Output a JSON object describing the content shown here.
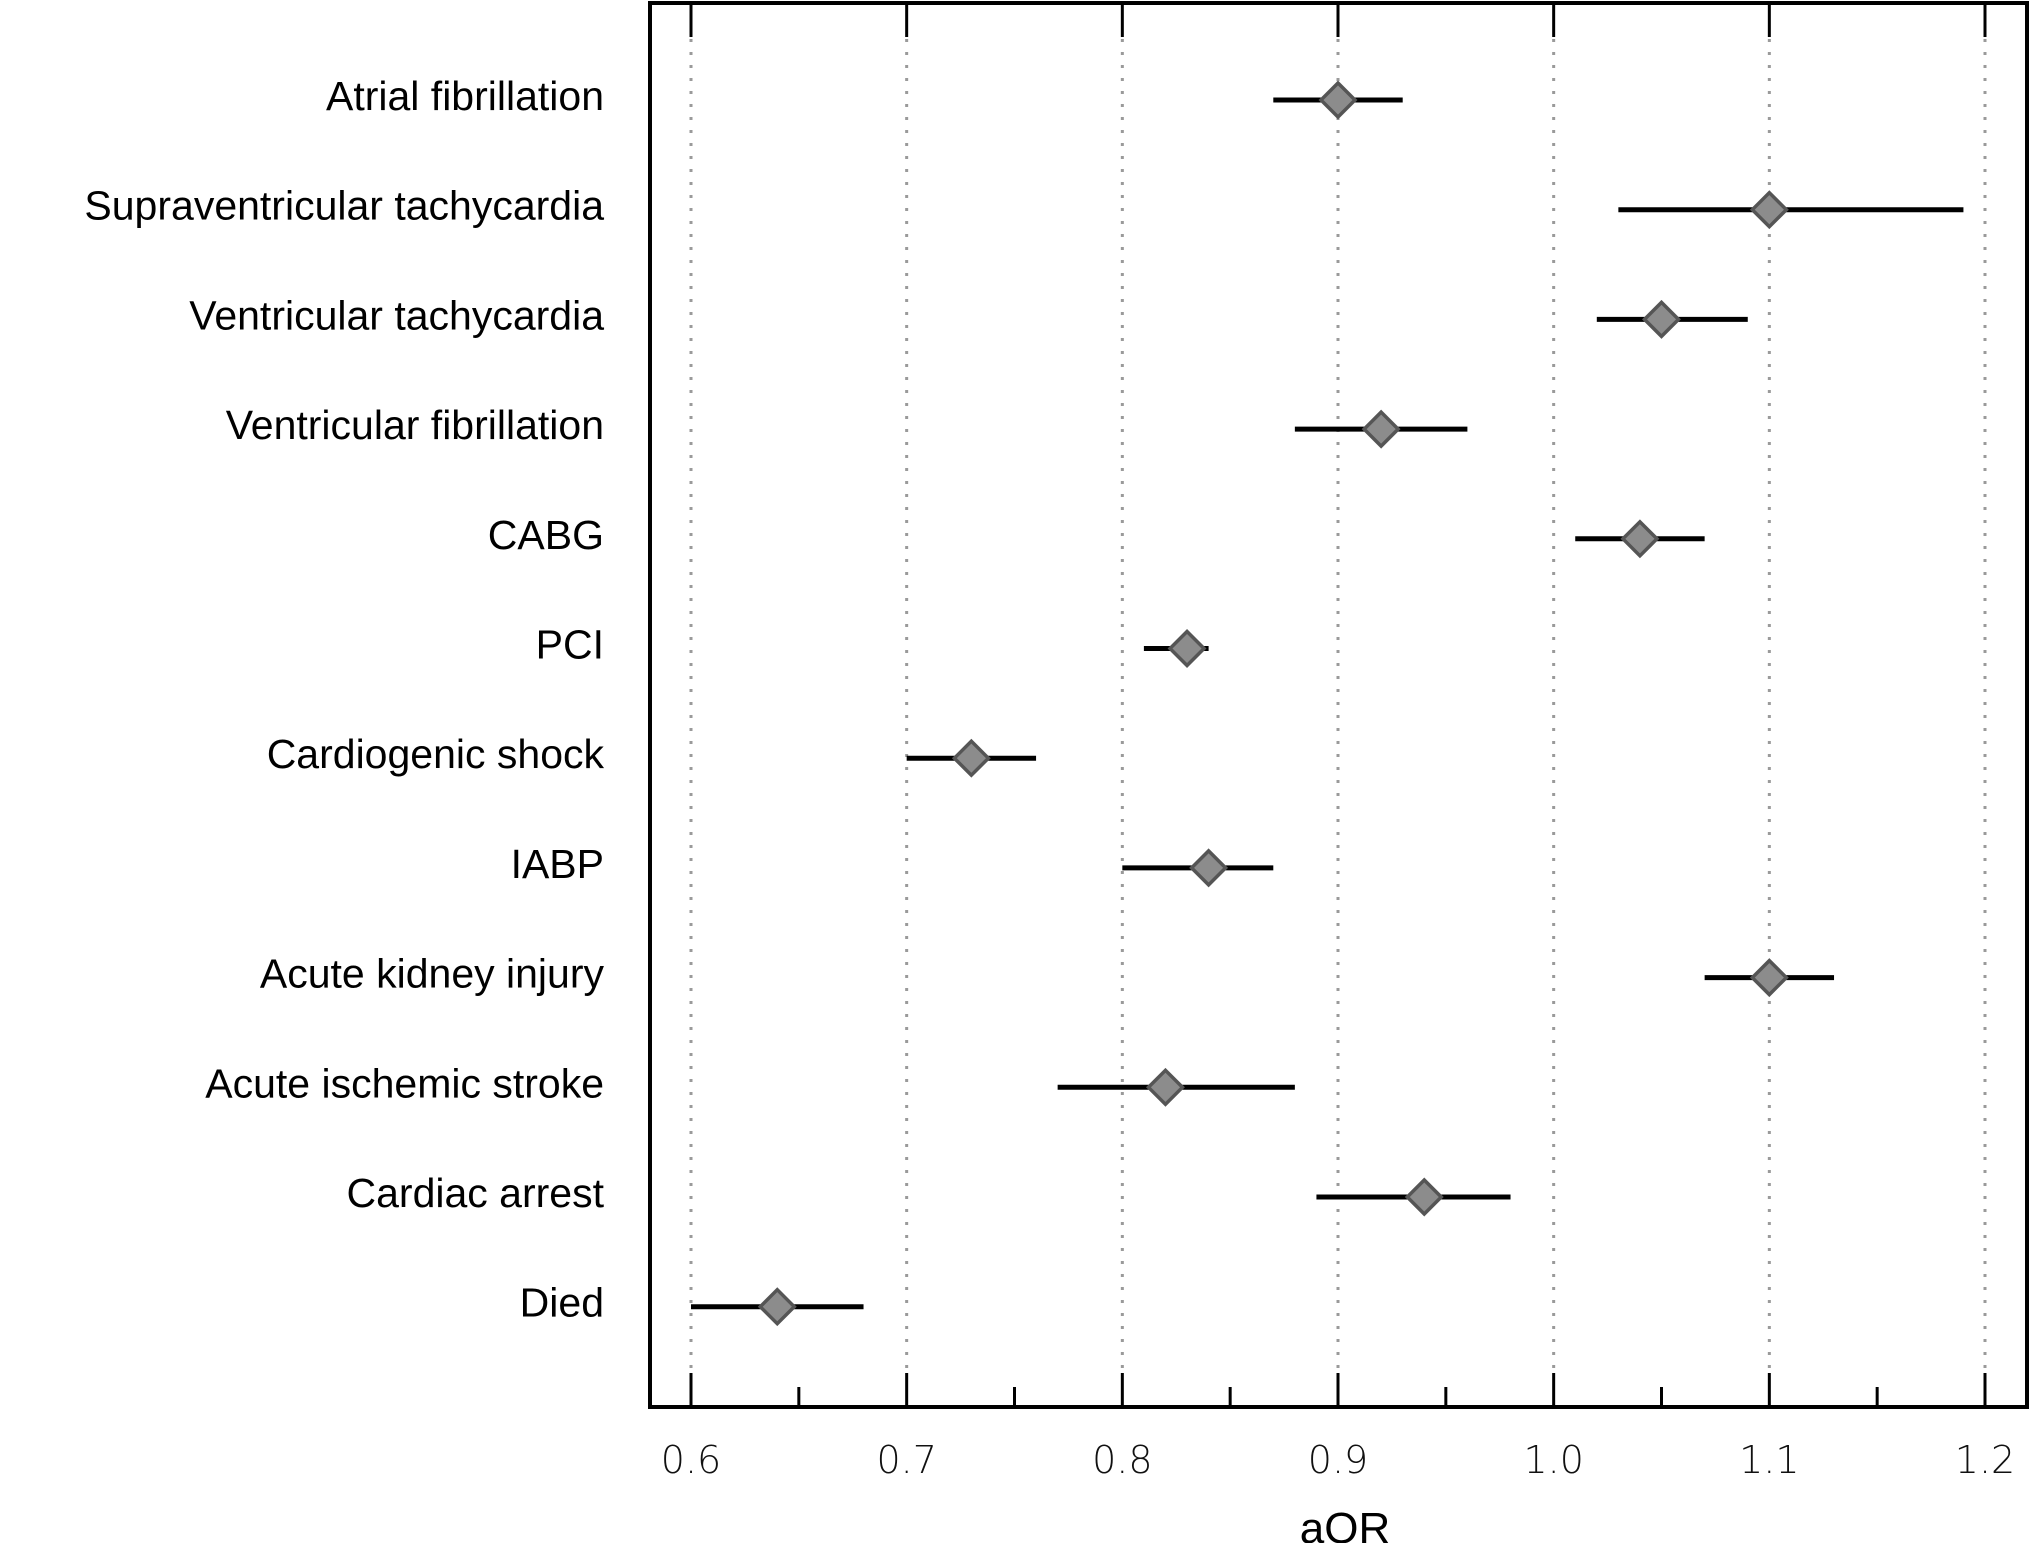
{
  "chart_data": {
    "type": "forest",
    "title": "",
    "xlabel": "aOR",
    "ylabel": "",
    "xlim": [
      0.58,
      1.225
    ],
    "x_ticks": [
      0.6,
      0.7,
      0.8,
      0.9,
      1.0,
      1.1,
      1.2
    ],
    "x_tick_labels": [
      "0.6",
      "0.7",
      "0.8",
      "0.9",
      "1.0",
      "1.1",
      "1.2"
    ],
    "x_minor_ticks": [
      0.65,
      0.75,
      0.85,
      0.95,
      1.05,
      1.15
    ],
    "grid": "vertical dotted at major ticks",
    "legend": "none",
    "marker": "diamond",
    "colors": {
      "marker_fill": "#8c8c8c",
      "marker_edge": "#555555",
      "ci_line": "#000000",
      "grid": "#9a9a9a"
    },
    "rows": [
      {
        "label": "Atrial fibrillation",
        "aor": 0.9,
        "ci_low": 0.87,
        "ci_high": 0.93
      },
      {
        "label": "Supraventricular tachycardia",
        "aor": 1.1,
        "ci_low": 1.03,
        "ci_high": 1.19
      },
      {
        "label": "Ventricular tachycardia",
        "aor": 1.05,
        "ci_low": 1.02,
        "ci_high": 1.09
      },
      {
        "label": "Ventricular fibrillation",
        "aor": 0.92,
        "ci_low": 0.88,
        "ci_high": 0.96
      },
      {
        "label": "CABG",
        "aor": 1.04,
        "ci_low": 1.01,
        "ci_high": 1.07
      },
      {
        "label": "PCI",
        "aor": 0.83,
        "ci_low": 0.81,
        "ci_high": 0.84
      },
      {
        "label": "Cardiogenic shock",
        "aor": 0.73,
        "ci_low": 0.7,
        "ci_high": 0.76
      },
      {
        "label": "IABP",
        "aor": 0.84,
        "ci_low": 0.8,
        "ci_high": 0.87
      },
      {
        "label": "Acute kidney injury",
        "aor": 1.1,
        "ci_low": 1.07,
        "ci_high": 1.13
      },
      {
        "label": "Acute ischemic stroke",
        "aor": 0.82,
        "ci_low": 0.77,
        "ci_high": 0.88
      },
      {
        "label": "Cardiac arrest",
        "aor": 0.94,
        "ci_low": 0.89,
        "ci_high": 0.98
      },
      {
        "label": "Died",
        "aor": 0.64,
        "ci_low": 0.6,
        "ci_high": 0.68
      }
    ]
  }
}
